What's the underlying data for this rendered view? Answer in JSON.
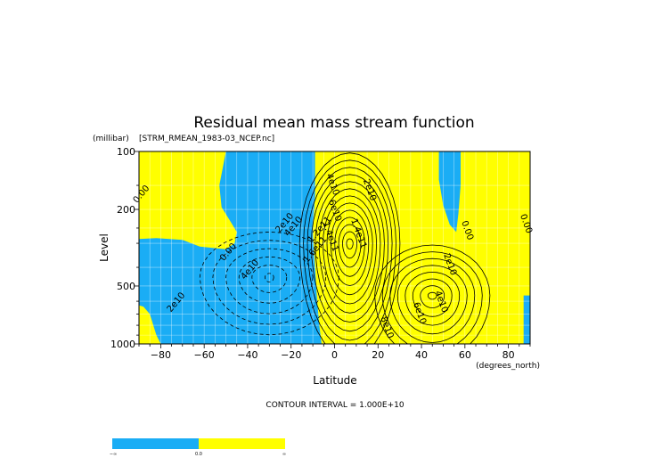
{
  "chart_data": {
    "type": "contour",
    "title": "Residual mean mass stream function",
    "source_file": "[STRM_RMEAN_1983-03_NCEP.nc]",
    "xlabel": "Latitude",
    "x_units": "(degrees_north)",
    "ylabel": "Level",
    "y_units": "(millibar)",
    "xlim": [
      -90,
      90
    ],
    "ylim": [
      1000,
      100
    ],
    "y_scale": "log",
    "x_ticks": [
      -80,
      -60,
      -40,
      -20,
      0,
      20,
      40,
      60,
      80
    ],
    "x_tick_labels": [
      "−80",
      "−60",
      "−40",
      "−20",
      "0",
      "20",
      "40",
      "60",
      "80"
    ],
    "y_ticks": [
      100,
      200,
      500,
      1000
    ],
    "y_tick_labels": [
      "100",
      "200",
      "500",
      "1000"
    ],
    "grid": true,
    "contour_interval_text": "CONTOUR INTERVAL = 1.000E+10",
    "contour_labels": [
      {
        "text": "0.00",
        "lat": -88,
        "p": 170
      },
      {
        "text": "0.00",
        "lat": -48,
        "p": 340
      },
      {
        "text": "2e10",
        "lat": -72,
        "p": 620
      },
      {
        "text": "4e10",
        "lat": -38,
        "p": 420
      },
      {
        "text": "2e10",
        "lat": -22,
        "p": 240
      },
      {
        "text": "4e10",
        "lat": -18,
        "p": 250
      },
      {
        "text": "4e10",
        "lat": -2,
        "p": 150
      },
      {
        "text": "6e10",
        "lat": -1,
        "p": 205
      },
      {
        "text": "1.2e11",
        "lat": -6,
        "p": 260
      },
      {
        "text": "1.6e11",
        "lat": -8,
        "p": 330
      },
      {
        "text": "1.4e11",
        "lat": -3,
        "p": 280
      },
      {
        "text": "1.4e11",
        "lat": 10,
        "p": 270
      },
      {
        "text": "2e10",
        "lat": 15,
        "p": 160
      },
      {
        "text": "0.00",
        "lat": 60,
        "p": 260
      },
      {
        "text": "0.00",
        "lat": 87,
        "p": 240
      },
      {
        "text": "2e10",
        "lat": 52,
        "p": 390
      },
      {
        "text": "4e10",
        "lat": 48,
        "p": 610
      },
      {
        "text": "6e10",
        "lat": 38,
        "p": 700
      },
      {
        "text": "8e10",
        "lat": 23,
        "p": 830
      }
    ],
    "regions": {
      "negative_color": "#1aadf5",
      "positive_color": "#ffff00"
    },
    "colorbar": {
      "labels": [
        "−∞",
        "0.0",
        "∞"
      ],
      "colors": [
        "#1aadf5",
        "#ffff00"
      ]
    }
  }
}
